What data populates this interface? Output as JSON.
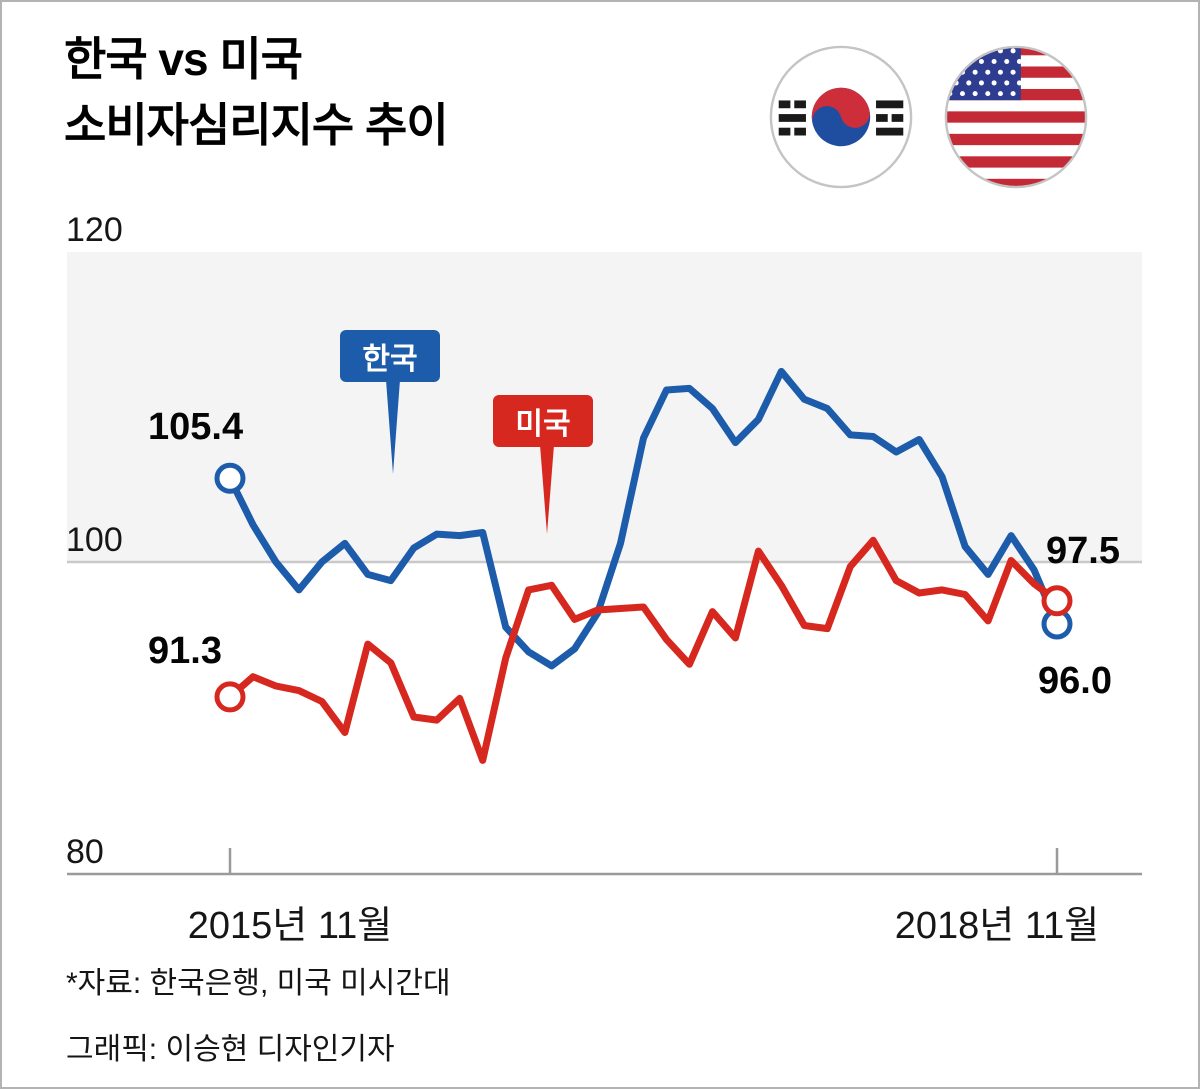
{
  "title": {
    "line1": "한국 vs 미국",
    "line2": "소비자심리지수 추이"
  },
  "axis": {
    "y_ticks": [
      "120",
      "100",
      "80"
    ],
    "x_ticks": [
      "2015년 11월",
      "2018년 11월"
    ]
  },
  "annotations": {
    "korea_start": "105.4",
    "korea_end": "96.0",
    "us_start": "91.3",
    "us_end": "97.5"
  },
  "footer": {
    "source": "*자료: 한국은행, 미국 미시간대",
    "credit": "그래픽: 이승현 디자인기자"
  },
  "colors": {
    "korea": "#1d5caa",
    "us": "#d7281f",
    "band": "#f4f4f4",
    "grid": "#c9c9c9",
    "axis": "#9a9a9a"
  },
  "chart_data": {
    "type": "line",
    "title": "한국 vs 미국 소비자심리지수 추이",
    "xlabel": "",
    "ylabel": "",
    "ylim": [
      80,
      120
    ],
    "y_ticks": [
      80,
      100,
      120
    ],
    "x_tick_labels": [
      "2015년 11월",
      "2018년 11월"
    ],
    "grid": "horizontal-band-100-120",
    "legend_position": "inline-callouts",
    "x": [
      "2015-11",
      "2015-12",
      "2016-01",
      "2016-02",
      "2016-03",
      "2016-04",
      "2016-05",
      "2016-06",
      "2016-07",
      "2016-08",
      "2016-09",
      "2016-10",
      "2016-11",
      "2016-12",
      "2017-01",
      "2017-02",
      "2017-03",
      "2017-04",
      "2017-05",
      "2017-06",
      "2017-07",
      "2017-08",
      "2017-09",
      "2017-10",
      "2017-11",
      "2017-12",
      "2018-01",
      "2018-02",
      "2018-03",
      "2018-04",
      "2018-05",
      "2018-06",
      "2018-07",
      "2018-08",
      "2018-09",
      "2018-10",
      "2018-11"
    ],
    "series": [
      {
        "id": "korea",
        "name": "한국",
        "color": "#1d5caa",
        "values": [
          105.4,
          102.4,
          100.0,
          98.2,
          100.0,
          101.2,
          99.2,
          98.8,
          100.9,
          101.8,
          101.7,
          101.9,
          95.8,
          94.2,
          93.3,
          94.4,
          96.7,
          101.2,
          108.0,
          111.1,
          111.2,
          109.9,
          107.7,
          109.2,
          112.3,
          110.5,
          109.9,
          108.2,
          108.1,
          107.1,
          107.9,
          105.5,
          101.0,
          99.2,
          101.7,
          99.5,
          96.0
        ]
      },
      {
        "id": "us",
        "name": "미국",
        "color": "#d7281f",
        "values": [
          91.3,
          92.6,
          92.0,
          91.7,
          91.0,
          89.0,
          94.7,
          93.5,
          90.0,
          89.8,
          91.2,
          87.2,
          93.8,
          98.2,
          98.5,
          96.3,
          96.9,
          97.0,
          97.1,
          95.0,
          93.4,
          96.8,
          95.1,
          100.7,
          98.5,
          95.9,
          95.7,
          99.7,
          101.4,
          98.8,
          98.0,
          98.2,
          97.9,
          96.2,
          100.1,
          98.6,
          97.5
        ]
      }
    ]
  }
}
